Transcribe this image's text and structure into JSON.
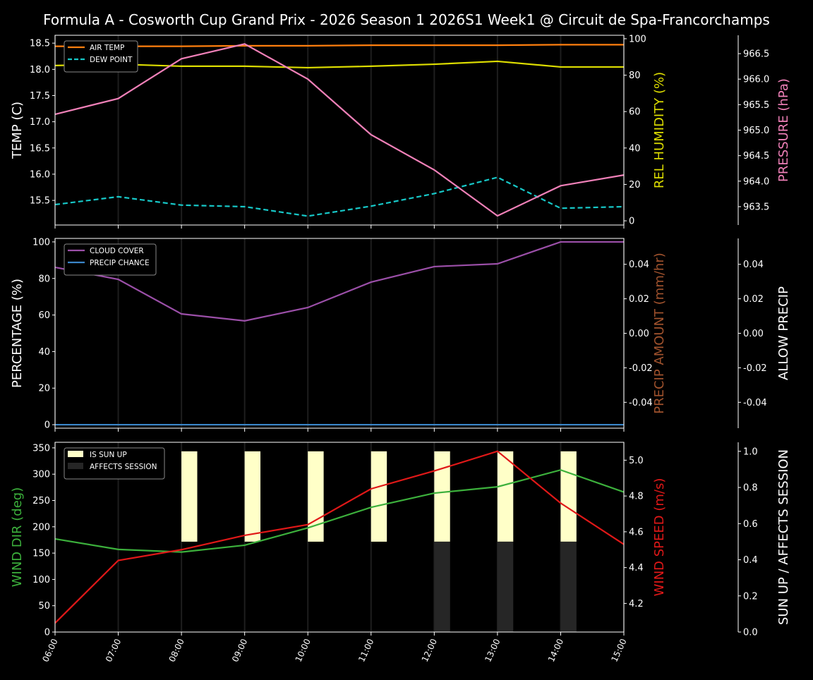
{
  "title": "Formula A - Cosworth Cup Grand Prix - 2026 Season 1 2026S1 Week1 @ Circuit de Spa-Francorchamps",
  "chart_data": [
    {
      "type": "line",
      "x": [
        "06:00",
        "07:00",
        "08:00",
        "09:00",
        "10:00",
        "11:00",
        "12:00",
        "13:00",
        "14:00",
        "15:00"
      ],
      "grid": "vertical",
      "legend": "top-left",
      "axes": [
        {
          "side": "left",
          "label": "TEMP (C)",
          "color": "#ffffff",
          "ylim": [
            15.03,
            18.65
          ],
          "ticks": [
            15.5,
            16.0,
            16.5,
            17.0,
            17.5,
            18.0,
            18.5
          ],
          "decimals": 1
        },
        {
          "side": "right",
          "label": "REL HUMIDITY (%)",
          "color": "#dddd00",
          "ylim": [
            -2.3,
            101.9
          ],
          "ticks": [
            0,
            20,
            40,
            60,
            80,
            100
          ],
          "decimals": 0
        },
        {
          "side": "right-outer",
          "label": "PRESSURE (hPa)",
          "color": "#f080b8",
          "ylim": [
            963.14,
            966.86
          ],
          "ticks": [
            963.5,
            964.0,
            964.5,
            965.0,
            965.5,
            966.0,
            966.5
          ],
          "decimals": 1
        }
      ],
      "series": [
        {
          "name": "AIR TEMP",
          "axis": 0,
          "color": "#ff7f0e",
          "dash": false,
          "legend": true,
          "values": [
            18.44,
            18.44,
            18.44,
            18.45,
            18.45,
            18.46,
            18.46,
            18.46,
            18.47,
            18.47
          ]
        },
        {
          "name": "DEW POINT",
          "axis": 0,
          "color": "#17c8c8",
          "dash": true,
          "legend": true,
          "values": [
            15.42,
            15.57,
            15.41,
            15.38,
            15.2,
            15.39,
            15.63,
            15.94,
            15.35,
            15.38
          ]
        },
        {
          "axis": 1,
          "color": "#dddd00",
          "dash": false,
          "legend": false,
          "values": [
            85.3,
            86.0,
            84.9,
            84.9,
            84.1,
            84.9,
            86.0,
            87.6,
            84.5,
            84.5
          ]
        },
        {
          "axis": 2,
          "color": "#f080b8",
          "dash": false,
          "legend": false,
          "values": [
            965.31,
            965.62,
            966.4,
            966.69,
            966.0,
            964.91,
            964.22,
            963.32,
            963.91,
            964.12
          ]
        }
      ]
    },
    {
      "type": "line",
      "x": [
        "06:00",
        "07:00",
        "08:00",
        "09:00",
        "10:00",
        "11:00",
        "12:00",
        "13:00",
        "14:00",
        "15:00"
      ],
      "grid": "vertical",
      "legend": "top-left",
      "axes": [
        {
          "side": "left",
          "label": "PERCENTAGE (%)",
          "color": "#ffffff",
          "ylim": [
            -1.9,
            101.9
          ],
          "ticks": [
            0,
            20,
            40,
            60,
            80,
            100
          ],
          "decimals": 0
        },
        {
          "side": "right",
          "label": "PRECIP AMOUNT (mm/hr)",
          "color": "#a0522d",
          "ylim": [
            -0.055,
            0.055
          ],
          "ticks": [
            -0.04,
            -0.02,
            0.0,
            0.02,
            0.04
          ],
          "decimals": 2
        },
        {
          "side": "right-outer",
          "label": "ALLOW PRECIP",
          "color": "#ffffff",
          "ylim": [
            -0.055,
            0.055
          ],
          "ticks": [
            -0.04,
            -0.02,
            0.0,
            0.02,
            0.04
          ],
          "decimals": 2
        }
      ],
      "series": [
        {
          "name": "CLOUD COVER",
          "axis": 0,
          "color": "#9b4fa8",
          "dash": false,
          "legend": true,
          "values": [
            86.1,
            79.5,
            60.6,
            56.8,
            64.1,
            78.0,
            86.5,
            88.0,
            100,
            100
          ]
        },
        {
          "name": "PRECIP CHANCE",
          "axis": 0,
          "color": "#3a85c8",
          "dash": false,
          "legend": true,
          "values": [
            0,
            0,
            0,
            0,
            0,
            0,
            0,
            0,
            0,
            0
          ]
        }
      ]
    },
    {
      "type": "line",
      "x": [
        "06:00",
        "07:00",
        "08:00",
        "09:00",
        "10:00",
        "11:00",
        "12:00",
        "13:00",
        "14:00",
        "15:00"
      ],
      "grid": "vertical",
      "legend": "top-left",
      "axes": [
        {
          "side": "left",
          "label": "WIND DIR (deg)",
          "color": "#3cb03c",
          "ylim": [
            0,
            360.6
          ],
          "ticks": [
            0,
            50,
            100,
            150,
            200,
            250,
            300,
            350
          ],
          "decimals": 0
        },
        {
          "side": "right",
          "label": "WIND SPEED (m/s)",
          "color": "#e01818",
          "ylim": [
            4.04,
            5.1
          ],
          "ticks": [
            4.2,
            4.4,
            4.6,
            4.8,
            5.0
          ],
          "decimals": 1
        },
        {
          "side": "right-outer",
          "label": "SUN UP / AFFECTS SESSION",
          "color": "#ffffff",
          "ylim": [
            0,
            1.05
          ],
          "ticks": [
            0.0,
            0.2,
            0.4,
            0.6,
            0.8,
            1.0
          ],
          "decimals": 1
        }
      ],
      "bars": [
        {
          "name": "IS SUN UP",
          "axis": 2,
          "color": "#ffffc8",
          "base": 0.5,
          "values": [
            0,
            0,
            0.5,
            0.5,
            0.5,
            0.5,
            0.5,
            0.5,
            0.5,
            0
          ]
        },
        {
          "name": "AFFECTS SESSION",
          "axis": 2,
          "color": "#262626",
          "base": 0,
          "values": [
            0,
            0,
            0,
            0,
            0,
            0,
            0.5,
            0.5,
            0.5,
            0
          ]
        }
      ],
      "series": [
        {
          "axis": 0,
          "color": "#3cb03c",
          "dash": false,
          "legend": false,
          "values": [
            177,
            157,
            152,
            165,
            198,
            237,
            264,
            276,
            308,
            266
          ]
        },
        {
          "axis": 1,
          "color": "#e01818",
          "dash": false,
          "legend": false,
          "values": [
            4.09,
            4.44,
            4.5,
            4.58,
            4.64,
            4.84,
            4.94,
            5.05,
            4.76,
            4.53
          ]
        }
      ]
    }
  ]
}
